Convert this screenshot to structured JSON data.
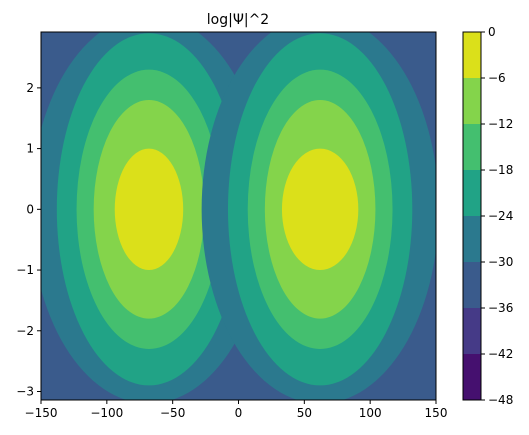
{
  "chart_data": {
    "type": "contourf",
    "title": "log|Ψ|^2",
    "xlabel": "",
    "ylabel": "",
    "xlim": [
      -150,
      150
    ],
    "ylim": [
      -3.14,
      2.92
    ],
    "x_ticks": [
      -150,
      -100,
      -50,
      0,
      50,
      100,
      150
    ],
    "y_ticks": [
      -3,
      -2,
      -1,
      0,
      1,
      2
    ],
    "colorbar": {
      "levels": [
        -48,
        -42,
        -36,
        -30,
        -24,
        -18,
        -12,
        -6,
        0
      ],
      "tick_labels": [
        "−48",
        "−42",
        "−36",
        "−30",
        "−24",
        "−18",
        "−12",
        "−6",
        "0"
      ],
      "colors": [
        "#45106f",
        "#453a87",
        "#3a5b8c",
        "#2b798e",
        "#21a386",
        "#44bf6f",
        "#84d44b",
        "#dbe01a"
      ]
    },
    "background_level_color": "#3a5b8c",
    "lobes": [
      {
        "center_x": -68,
        "center_y": 0,
        "contours": [
          {
            "level": -30,
            "x_half_width": 90,
            "y_half_height": 3.2,
            "color": "#2b798e"
          },
          {
            "level": -24,
            "x_half_width": 70,
            "y_half_height": 2.9,
            "color": "#21a386"
          },
          {
            "level": -18,
            "x_half_width": 55,
            "y_half_height": 2.3,
            "color": "#44bf6f"
          },
          {
            "level": -12,
            "x_half_width": 42,
            "y_half_height": 1.8,
            "color": "#84d44b"
          },
          {
            "level": -6,
            "x_half_width": 26,
            "y_half_height": 1.0,
            "color": "#dbe01a"
          }
        ]
      },
      {
        "center_x": 62,
        "center_y": 0,
        "contours": [
          {
            "level": -30,
            "x_half_width": 90,
            "y_half_height": 3.2,
            "color": "#2b798e"
          },
          {
            "level": -24,
            "x_half_width": 70,
            "y_half_height": 2.9,
            "color": "#21a386"
          },
          {
            "level": -18,
            "x_half_width": 55,
            "y_half_height": 2.3,
            "color": "#44bf6f"
          },
          {
            "level": -12,
            "x_half_width": 42,
            "y_half_height": 1.8,
            "color": "#84d44b"
          },
          {
            "level": -6,
            "x_half_width": 29,
            "y_half_height": 1.0,
            "color": "#dbe01a"
          }
        ]
      }
    ]
  }
}
